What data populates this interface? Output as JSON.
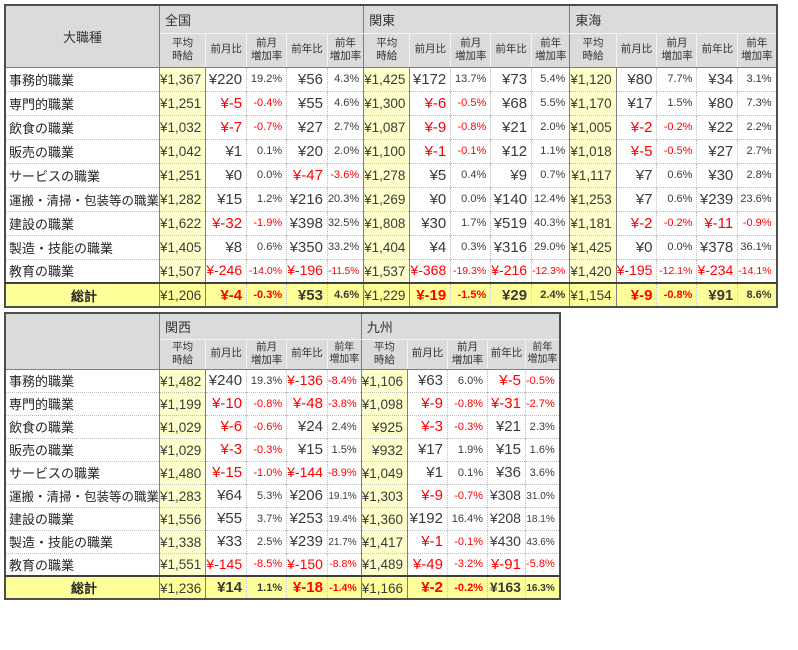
{
  "sub_headers": [
    "平均\n時給",
    "前月比",
    "前月\n増加率",
    "前年比",
    "前年\n増加率"
  ],
  "colors": {
    "header_bg": "#DBDBDB",
    "avg_column_bg": "#FFFFCC",
    "total_row_bg": "#FFFF99",
    "negative_text": "#FF0000",
    "value_text": "#3A3A3A",
    "grid_major": "#7F7F7F",
    "grid_minor": "#BDBDBD",
    "outer_border": "#4D4D4D"
  },
  "tables": [
    {
      "name": "wage-table-top",
      "corner_label": "大職種",
      "total_label": "総計",
      "regions": [
        "全国",
        "関東",
        "東海"
      ],
      "rows": [
        {
          "label": "事務的職業",
          "values": [
            [
              "¥1,367",
              "¥220",
              "19.2%",
              "¥56",
              "4.3%"
            ],
            [
              "¥1,425",
              "¥172",
              "13.7%",
              "¥73",
              "5.4%"
            ],
            [
              "¥1,120",
              "¥80",
              "7.7%",
              "¥34",
              "3.1%"
            ]
          ]
        },
        {
          "label": "専門的職業",
          "values": [
            [
              "¥1,251",
              "¥-5",
              "-0.4%",
              "¥55",
              "4.6%"
            ],
            [
              "¥1,300",
              "¥-6",
              "-0.5%",
              "¥68",
              "5.5%"
            ],
            [
              "¥1,170",
              "¥17",
              "1.5%",
              "¥80",
              "7.3%"
            ]
          ]
        },
        {
          "label": "飲食の職業",
          "values": [
            [
              "¥1,032",
              "¥-7",
              "-0.7%",
              "¥27",
              "2.7%"
            ],
            [
              "¥1,087",
              "¥-9",
              "-0.8%",
              "¥21",
              "2.0%"
            ],
            [
              "¥1,005",
              "¥-2",
              "-0.2%",
              "¥22",
              "2.2%"
            ]
          ]
        },
        {
          "label": "販売の職業",
          "values": [
            [
              "¥1,042",
              "¥1",
              "0.1%",
              "¥20",
              "2.0%"
            ],
            [
              "¥1,100",
              "¥-1",
              "-0.1%",
              "¥12",
              "1.1%"
            ],
            [
              "¥1,018",
              "¥-5",
              "-0.5%",
              "¥27",
              "2.7%"
            ]
          ]
        },
        {
          "label": "サービスの職業",
          "values": [
            [
              "¥1,251",
              "¥0",
              "0.0%",
              "¥-47",
              "-3.6%"
            ],
            [
              "¥1,278",
              "¥5",
              "0.4%",
              "¥9",
              "0.7%"
            ],
            [
              "¥1,117",
              "¥7",
              "0.6%",
              "¥30",
              "2.8%"
            ]
          ]
        },
        {
          "label": "運搬・清掃・包装等の職業",
          "values": [
            [
              "¥1,282",
              "¥15",
              "1.2%",
              "¥216",
              "20.3%"
            ],
            [
              "¥1,269",
              "¥0",
              "0.0%",
              "¥140",
              "12.4%"
            ],
            [
              "¥1,253",
              "¥7",
              "0.6%",
              "¥239",
              "23.6%"
            ]
          ]
        },
        {
          "label": "建設の職業",
          "values": [
            [
              "¥1,622",
              "¥-32",
              "-1.9%",
              "¥398",
              "32.5%"
            ],
            [
              "¥1,808",
              "¥30",
              "1.7%",
              "¥519",
              "40.3%"
            ],
            [
              "¥1,181",
              "¥-2",
              "-0.2%",
              "¥-11",
              "-0.9%"
            ]
          ]
        },
        {
          "label": "製造・技能の職業",
          "values": [
            [
              "¥1,405",
              "¥8",
              "0.6%",
              "¥350",
              "33.2%"
            ],
            [
              "¥1,404",
              "¥4",
              "0.3%",
              "¥316",
              "29.0%"
            ],
            [
              "¥1,425",
              "¥0",
              "0.0%",
              "¥378",
              "36.1%"
            ]
          ]
        },
        {
          "label": "教育の職業",
          "values": [
            [
              "¥1,507",
              "¥-246",
              "-14.0%",
              "¥-196",
              "-11.5%"
            ],
            [
              "¥1,537",
              "¥-368",
              "-19.3%",
              "¥-216",
              "-12.3%"
            ],
            [
              "¥1,420",
              "¥-195",
              "-12.1%",
              "¥-234",
              "-14.1%"
            ]
          ]
        }
      ],
      "total": {
        "label": "総計",
        "values": [
          [
            "¥1,206",
            "¥-4",
            "-0.3%",
            "¥53",
            "4.6%"
          ],
          [
            "¥1,229",
            "¥-19",
            "-1.5%",
            "¥29",
            "2.4%"
          ],
          [
            "¥1,154",
            "¥-9",
            "-0.8%",
            "¥91",
            "8.6%"
          ]
        ]
      }
    },
    {
      "name": "wage-table-bottom",
      "corner_label": "",
      "total_label": "総計",
      "regions": [
        "関西",
        "九州"
      ],
      "rows": [
        {
          "label": "事務的職業",
          "values": [
            [
              "¥1,482",
              "¥240",
              "19.3%",
              "¥-136",
              "-8.4%"
            ],
            [
              "¥1,106",
              "¥63",
              "6.0%",
              "¥-5",
              "-0.5%"
            ]
          ]
        },
        {
          "label": "専門的職業",
          "values": [
            [
              "¥1,199",
              "¥-10",
              "-0.8%",
              "¥-48",
              "-3.8%"
            ],
            [
              "¥1,098",
              "¥-9",
              "-0.8%",
              "¥-31",
              "-2.7%"
            ]
          ]
        },
        {
          "label": "飲食の職業",
          "values": [
            [
              "¥1,029",
              "¥-6",
              "-0.6%",
              "¥24",
              "2.4%"
            ],
            [
              "¥925",
              "¥-3",
              "-0.3%",
              "¥21",
              "2.3%"
            ]
          ]
        },
        {
          "label": "販売の職業",
          "values": [
            [
              "¥1,029",
              "¥-3",
              "-0.3%",
              "¥15",
              "1.5%"
            ],
            [
              "¥932",
              "¥17",
              "1.9%",
              "¥15",
              "1.6%"
            ]
          ]
        },
        {
          "label": "サービスの職業",
          "values": [
            [
              "¥1,480",
              "¥-15",
              "-1.0%",
              "¥-144",
              "-8.9%"
            ],
            [
              "¥1,049",
              "¥1",
              "0.1%",
              "¥36",
              "3.6%"
            ]
          ]
        },
        {
          "label": "運搬・清掃・包装等の職業",
          "values": [
            [
              "¥1,283",
              "¥64",
              "5.3%",
              "¥206",
              "19.1%"
            ],
            [
              "¥1,303",
              "¥-9",
              "-0.7%",
              "¥308",
              "31.0%"
            ]
          ]
        },
        {
          "label": "建設の職業",
          "values": [
            [
              "¥1,556",
              "¥55",
              "3.7%",
              "¥253",
              "19.4%"
            ],
            [
              "¥1,360",
              "¥192",
              "16.4%",
              "¥208",
              "18.1%"
            ]
          ]
        },
        {
          "label": "製造・技能の職業",
          "values": [
            [
              "¥1,338",
              "¥33",
              "2.5%",
              "¥239",
              "21.7%"
            ],
            [
              "¥1,417",
              "¥-1",
              "-0.1%",
              "¥430",
              "43.6%"
            ]
          ]
        },
        {
          "label": "教育の職業",
          "values": [
            [
              "¥1,551",
              "¥-145",
              "-8.5%",
              "¥-150",
              "-8.8%"
            ],
            [
              "¥1,489",
              "¥-49",
              "-3.2%",
              "¥-91",
              "-5.8%"
            ]
          ]
        }
      ],
      "total": {
        "label": "総計",
        "values": [
          [
            "¥1,236",
            "¥14",
            "1.1%",
            "¥-18",
            "-1.4%"
          ],
          [
            "¥1,166",
            "¥-2",
            "-0.2%",
            "¥163",
            "16.3%"
          ]
        ]
      }
    }
  ]
}
